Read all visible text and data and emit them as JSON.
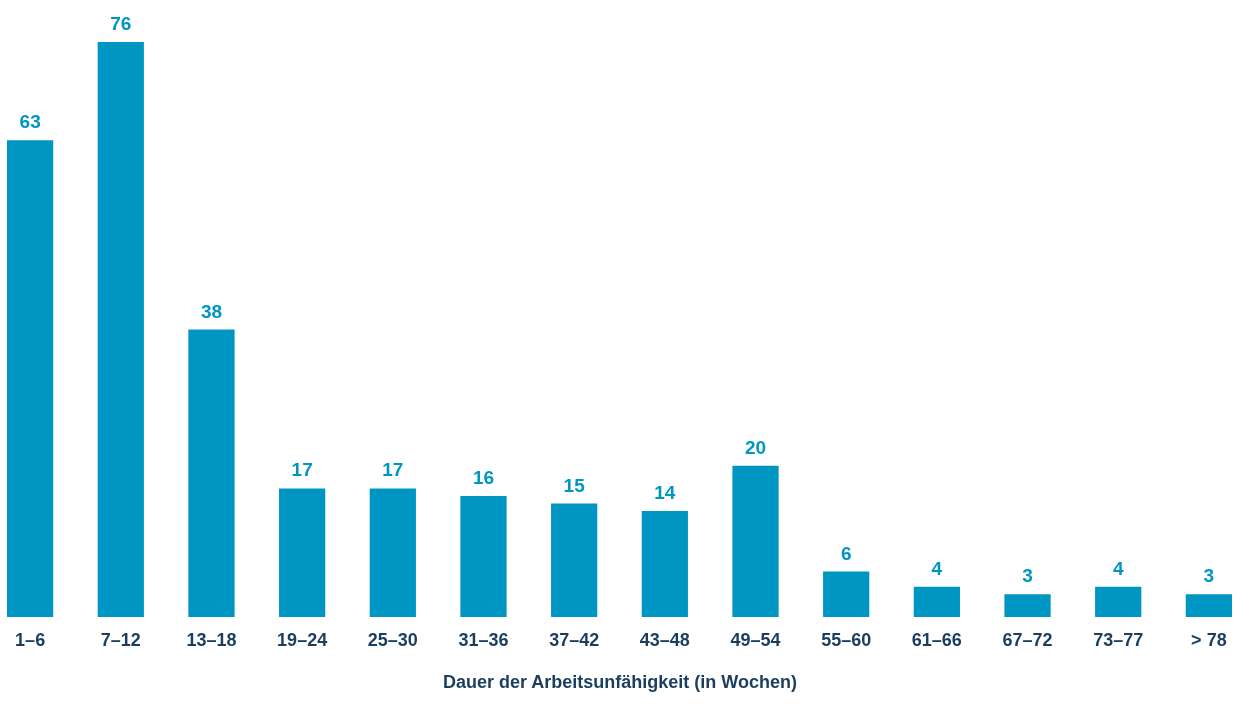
{
  "chart_data": {
    "type": "bar",
    "xlabel": "Dauer der Arbeitsunfähigkeit (in Wochen)",
    "categories": [
      "1–6",
      "7–12",
      "13–18",
      "19–24",
      "25–30",
      "31–36",
      "37–42",
      "43–48",
      "49–54",
      "55–60",
      "61–66",
      "67–72",
      "73–77",
      "> 78"
    ],
    "values": [
      63,
      76,
      38,
      17,
      17,
      16,
      15,
      14,
      20,
      6,
      4,
      3,
      4,
      3
    ],
    "color": "#0096c3",
    "data_labels": true
  }
}
